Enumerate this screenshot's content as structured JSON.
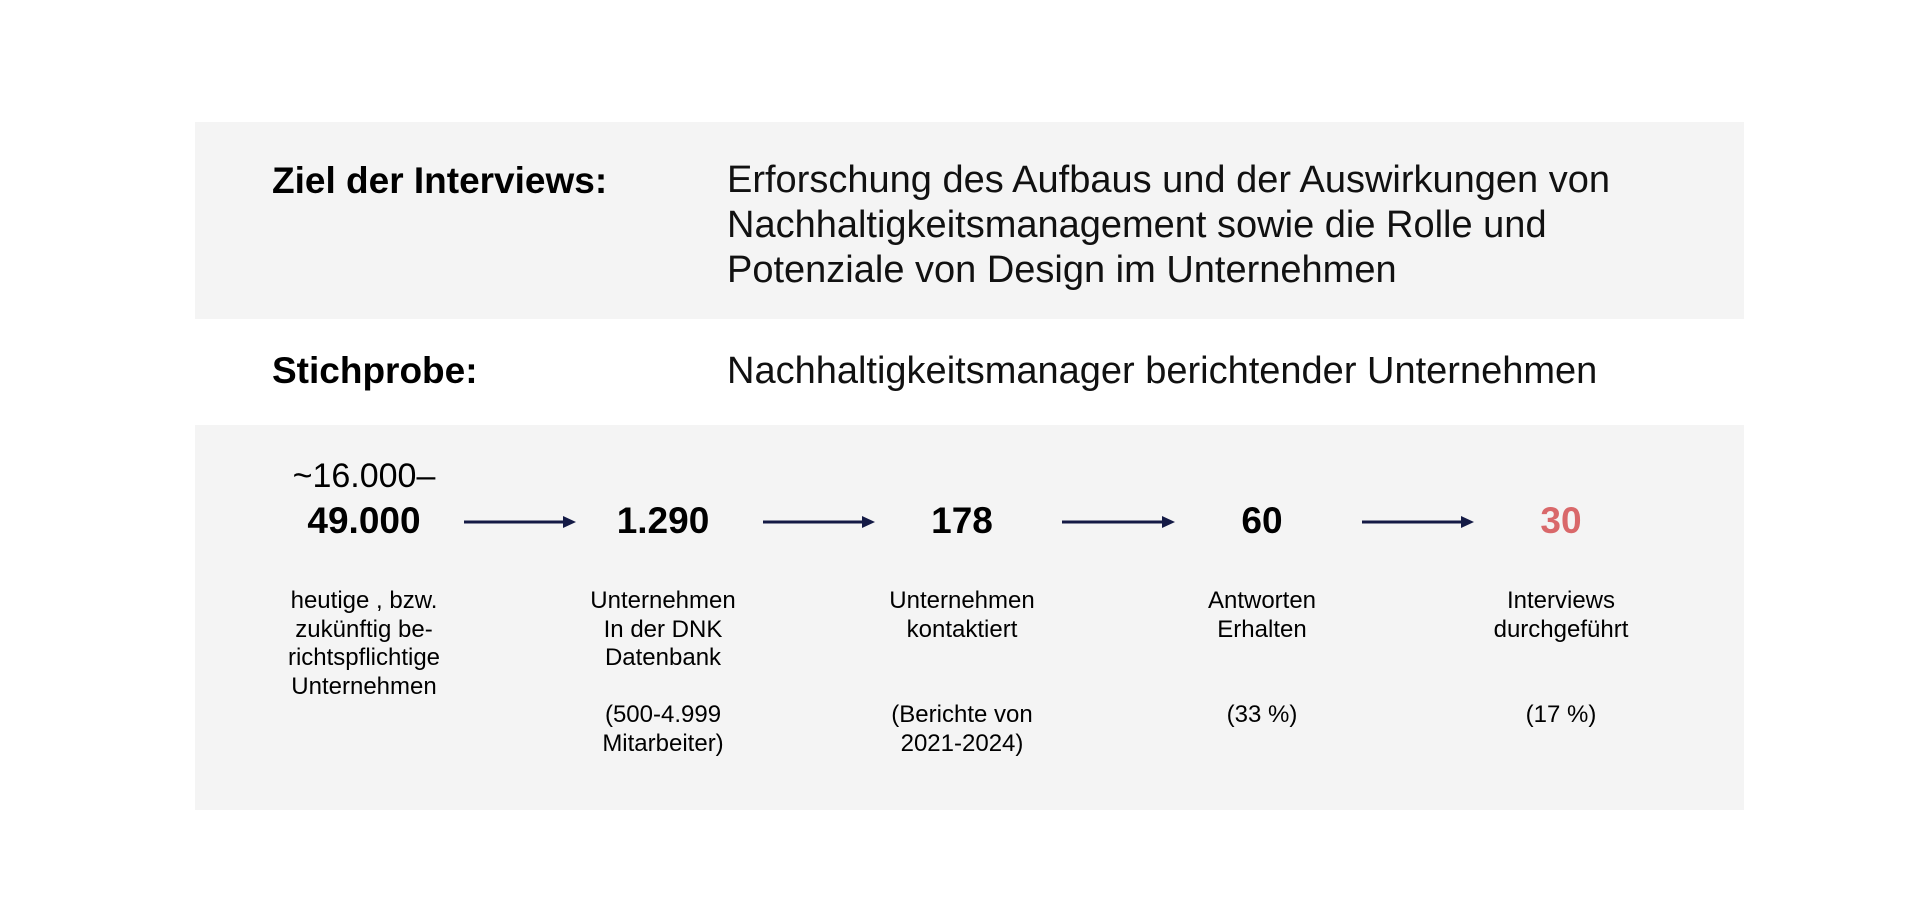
{
  "goal": {
    "label": "Ziel der Interviews:",
    "lines": [
      "Erforschung des Aufbaus und der Auswirkungen von",
      "Nachhaltigkeitsmanagement sowie die Rolle und",
      "Potenziale von Design im Unternehmen"
    ]
  },
  "sample": {
    "label": "Stichprobe:",
    "text": "Nachhaltigkeitsmanager berichtender Unternehmen"
  },
  "funnel": [
    {
      "top": "~16.000–",
      "number": "49.000",
      "description": [
        "heutige , bzw.",
        "zukünftig be-",
        "richtspflichtige",
        "Unternehmen"
      ],
      "note": []
    },
    {
      "number": "1.290",
      "description": [
        "Unternehmen",
        "In der DNK",
        "Datenbank"
      ],
      "note": [
        "(500-4.999",
        "Mitarbeiter)"
      ]
    },
    {
      "number": "178",
      "description": [
        "Unternehmen",
        "kontaktiert"
      ],
      "note": [
        "(Berichte von",
        "2021-2024)"
      ]
    },
    {
      "number": "60",
      "description": [
        "Antworten",
        "Erhalten"
      ],
      "note": [
        "(33 %)"
      ]
    },
    {
      "number": "30",
      "description": [
        "Interviews",
        "durchgeführt"
      ],
      "note": [
        "(17 %)"
      ],
      "highlight": "#d9686a"
    }
  ]
}
